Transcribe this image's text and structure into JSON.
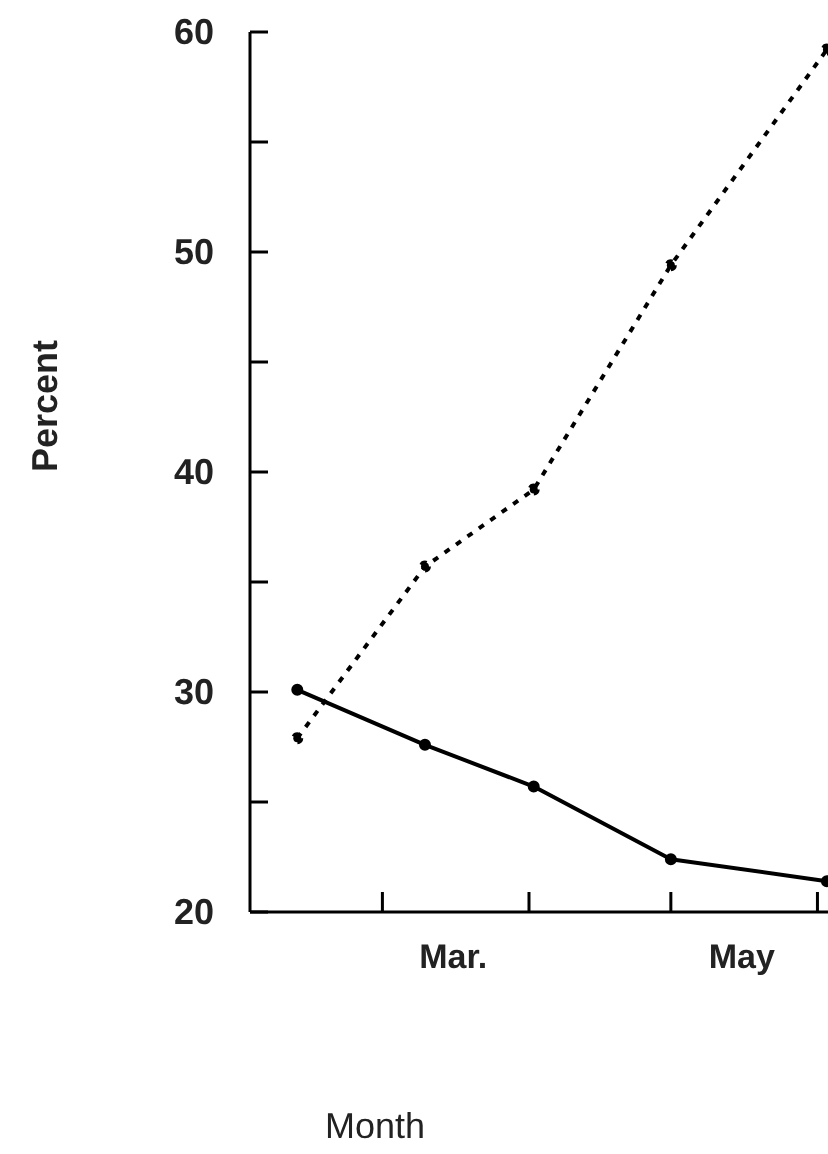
{
  "chart_data": {
    "type": "line",
    "xlabel": "Month",
    "ylabel": "Percent",
    "x": [
      "--02-11",
      "--03-10",
      "--04-02",
      "--05-01",
      "--06-03"
    ],
    "series": [
      {
        "color": "#000000",
        "line_style": "solid",
        "values": [
          30.1,
          27.6,
          25.7,
          22.4,
          21.4
        ]
      },
      {
        "color": "#000000",
        "line_style": "dotted",
        "values": [
          27.9,
          35.7,
          39.2,
          49.4,
          59.2
        ]
      }
    ],
    "marker": "circle",
    "grid": false,
    "legend": false,
    "xlim": [
      "--02-01",
      "--06-10"
    ],
    "xticks": [
      {
        "value": "--03-01",
        "label": null
      },
      {
        "value": "--03-16",
        "label": "Mar."
      },
      {
        "value": "--04-01",
        "label": null
      },
      {
        "value": "--05-01",
        "label": null
      },
      {
        "value": "--05-16",
        "label": "May"
      },
      {
        "value": "--06-01",
        "label": null
      }
    ],
    "ylim": [
      20,
      60
    ],
    "yticks": [
      20,
      {
        "value": 25,
        "label": null
      },
      30,
      {
        "value": 35,
        "label": null
      },
      40,
      {
        "value": 45,
        "label": null
      },
      50,
      {
        "value": 55,
        "label": null
      },
      60
    ]
  }
}
